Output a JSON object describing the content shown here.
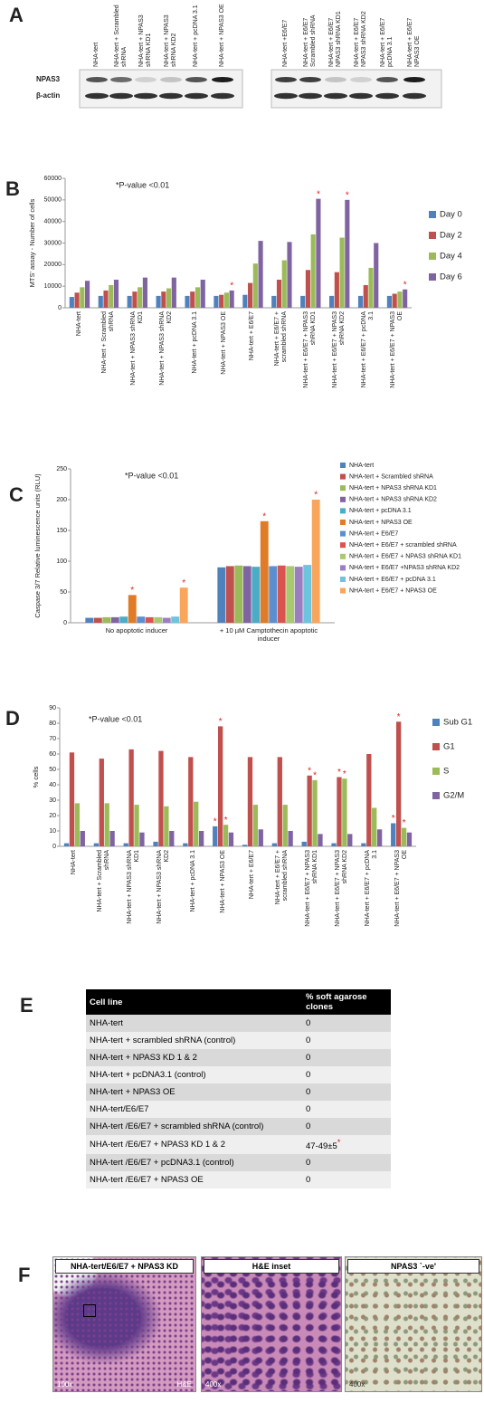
{
  "panel_labels": [
    "A",
    "B",
    "C",
    "D",
    "E",
    "F"
  ],
  "blot": {
    "lanes_left": [
      "NHA-tert",
      "NHA-tert + Scrambled shRNA",
      "NHA-tert + NPAS3 shRNA KD1",
      "NHA-tert + NPAS3 shRNA KD2",
      "NHA-tert + pcDNA 3.1",
      "NHA-tert + NPAS3 OE"
    ],
    "lanes_right": [
      "NHA-tert +E6/E7",
      "NHA-tert + E6/E7 Scrambled shRNA",
      "NHA-tert + E6/E7 NPAS3 shRNA KD1",
      "NHA-tert + E6/E7 NPAS3 shRNA KD2",
      "NHA-tert + E6/E7 pcDNA 3.1",
      "NHA-tert + E6/E7 NPAS3 OE"
    ],
    "rows": [
      "NPAS3",
      "β-actin"
    ]
  },
  "chart_data": [
    {
      "type": "bar",
      "ylabel": "MTS' assay - Number of cells",
      "annotation": "*P-value <0.01",
      "significance_label": "*",
      "categories": [
        "NHA-tert",
        "NHA-tert + Scrambled shRNA",
        "NHA-tert + NPAS3 shRNA KD1",
        "NHA-tert + NPAS3 shRNA KD2",
        "NHA-tert + pcDNA 3.1",
        "NHA-tert + NPAS3 OE",
        "NHA-tert + E6/E7",
        "NHA-tert + E6/E7 + scrambled shRNA",
        "NHA-tert + E6/E7 + NPAS3 shRNA KD1",
        "NHA-tert + E6/E7 + NPAS3 shRNA KD2",
        "NHA-tert + E6/E7 + pcDNA 3.1",
        "NHA-tert + E6/E7 + NPAS3 OE"
      ],
      "series": [
        {
          "name": "Day 0",
          "color": "#4f81bd",
          "values": [
            5000,
            5500,
            5500,
            5500,
            5500,
            5500,
            6000,
            5500,
            5500,
            5500,
            5500,
            5500
          ]
        },
        {
          "name": "Day 2",
          "color": "#c0504d",
          "values": [
            7000,
            8000,
            7500,
            7500,
            7500,
            6000,
            11500,
            13000,
            17500,
            16500,
            10500,
            6500
          ]
        },
        {
          "name": "Day 4",
          "color": "#9bbb59",
          "values": [
            9500,
            10500,
            9500,
            9000,
            9500,
            7000,
            20500,
            22000,
            34000,
            32500,
            18500,
            7500
          ]
        },
        {
          "name": "Day 6",
          "color": "#8064a2",
          "values": [
            12500,
            13000,
            14000,
            14000,
            13000,
            8000,
            31000,
            30500,
            50500,
            50000,
            30000,
            8500
          ]
        }
      ],
      "significance": [
        [
          3,
          5
        ],
        [
          3,
          8
        ],
        [
          3,
          9
        ],
        [
          3,
          11
        ]
      ],
      "ylim": [
        0,
        60000
      ],
      "yticks": [
        0,
        10000,
        20000,
        30000,
        40000,
        50000,
        60000
      ],
      "grid": false,
      "legend": "right"
    },
    {
      "type": "bar",
      "ylabel": "Caspase 3/7 Relative luminescence units (RLU)",
      "annotation": "*P-value <0.01",
      "significance_label": "*",
      "categories": [
        "No apoptotic inducer",
        "+ 10 µM Camptothecin apoptotic inducer"
      ],
      "series": [
        {
          "name": "NHA-tert",
          "color": "#4f81bd",
          "values": [
            8,
            90
          ]
        },
        {
          "name": "NHA-tert + Scrambled shRNA",
          "color": "#c0504d",
          "values": [
            8,
            92
          ]
        },
        {
          "name": "NHA-tert + NPAS3 shRNA KD1",
          "color": "#9bbb59",
          "values": [
            9,
            93
          ]
        },
        {
          "name": "NHA-tert + NPAS3 shRNA KD2",
          "color": "#8064a2",
          "values": [
            9,
            92
          ]
        },
        {
          "name": "NHA-tert + pcDNA 3.1",
          "color": "#4bacc6",
          "values": [
            10,
            91
          ]
        },
        {
          "name": "NHA-tert + NPAS3 OE",
          "color": "#e07b27",
          "values": [
            45,
            165
          ]
        },
        {
          "name": "NHA-tert + E6/E7",
          "color": "#5b8fd0",
          "values": [
            10,
            92
          ]
        },
        {
          "name": "NHA-tert + E6/E7 + scrambled shRNA",
          "color": "#d9534f",
          "values": [
            9,
            93
          ]
        },
        {
          "name": "NHA-tert + E6/E7 + NPAS3 shRNA KD1",
          "color": "#a9c971",
          "values": [
            9,
            92
          ]
        },
        {
          "name": "NHA-tert + E6/E7 +NPAS3 shRNA KD2",
          "color": "#9a7fc0",
          "values": [
            8,
            91
          ]
        },
        {
          "name": "NHA-tert + E6/E7 + pcDNA 3.1",
          "color": "#6cc5dc",
          "values": [
            10,
            94
          ]
        },
        {
          "name": "NHA-tert + E6/E7 + NPAS3 OE",
          "color": "#f9a55b",
          "values": [
            57,
            200
          ]
        }
      ],
      "significance": [
        [
          5,
          0
        ],
        [
          11,
          0
        ],
        [
          5,
          1
        ],
        [
          11,
          1
        ]
      ],
      "ylim": [
        0,
        250
      ],
      "yticks": [
        0,
        50,
        100,
        150,
        200,
        250
      ],
      "grid": false,
      "legend": "right"
    },
    {
      "type": "bar",
      "ylabel": "% cells",
      "annotation": "*P-value <0.01",
      "significance_label": "*",
      "categories": [
        "NHA-tert",
        "NHA-tert + Scrambled shRNA",
        "NHA-tert + NPAS3 shRNA KD1",
        "NHA-tert + NPAS3 shRNA KD2",
        "NHA-tert + pcDNA 3.1",
        "NHA-tert + NPAS3 OE",
        "NHA-tert + E6/E7",
        "NHA-tert + E6/E7 + scrambled shRNA",
        "NHA-tert + E6/E7 + NPAS3 shRNA KD1",
        "NHA-tert + E6/E7 + NPAS3 shRNA KD2",
        "NHA-tert + E6/E7 + pcDNA 3.1",
        "NHA-tert + E6/E7 + NPAS3 OE"
      ],
      "series": [
        {
          "name": "Sub G1",
          "color": "#4f81bd",
          "values": [
            2,
            2,
            2,
            3,
            2,
            13,
            1,
            2,
            3,
            2,
            2,
            15
          ]
        },
        {
          "name": "G1",
          "color": "#c0504d",
          "values": [
            61,
            57,
            63,
            62,
            58,
            78,
            58,
            58,
            46,
            45,
            60,
            81
          ]
        },
        {
          "name": "S",
          "color": "#9bbb59",
          "values": [
            28,
            28,
            27,
            26,
            29,
            14,
            27,
            27,
            43,
            44,
            25,
            12
          ]
        },
        {
          "name": "G2/M",
          "color": "#8064a2",
          "values": [
            10,
            10,
            9,
            10,
            10,
            9,
            11,
            10,
            8,
            8,
            11,
            9
          ]
        }
      ],
      "significance": [
        [
          0,
          5
        ],
        [
          1,
          5
        ],
        [
          2,
          5
        ],
        [
          1,
          8
        ],
        [
          2,
          8
        ],
        [
          1,
          9
        ],
        [
          2,
          9
        ],
        [
          0,
          11
        ],
        [
          1,
          11
        ],
        [
          2,
          11
        ]
      ],
      "ylim": [
        0,
        90
      ],
      "yticks": [
        0,
        10,
        20,
        30,
        40,
        50,
        60,
        70,
        80,
        90
      ],
      "grid": false,
      "legend": "right"
    }
  ],
  "table": {
    "header": [
      "Cell line",
      "% soft agarose clones"
    ],
    "rows": [
      {
        "cells": [
          "NHA-tert",
          "0"
        ]
      },
      {
        "cells": [
          "NHA-tert + scrambled shRNA (control)",
          "0"
        ]
      },
      {
        "cells": [
          "NHA-tert + NPAS3 KD 1 & 2",
          "0"
        ]
      },
      {
        "cells": [
          "NHA-tert + pcDNA3.1 (control)",
          "0"
        ]
      },
      {
        "cells": [
          "NHA-tert + NPAS3 OE",
          "0"
        ]
      },
      {
        "cells": [
          "NHA-tert/E6/E7",
          "0"
        ]
      },
      {
        "cells": [
          "NHA-tert /E6/E7 + scrambled shRNA (control)",
          "0"
        ]
      },
      {
        "cells": [
          "NHA-tert /E6/E7 + NPAS3 KD 1 & 2",
          "47-49±5"
        ],
        "mark": "*"
      },
      {
        "cells": [
          "NHA-tert /E6/E7 + pcDNA3.1 (control)",
          "0"
        ]
      },
      {
        "cells": [
          "NHA-tert /E6/E7 + NPAS3 OE",
          "0"
        ]
      }
    ]
  },
  "histology": [
    {
      "title": "NHA-tert/E6/E7 + NPAS3 KD",
      "magnification": "100x",
      "stain": "H&E"
    },
    {
      "title": "H&E inset",
      "magnification": "400x"
    },
    {
      "title": "NPAS3 `-ve'",
      "magnification": "400x"
    }
  ]
}
